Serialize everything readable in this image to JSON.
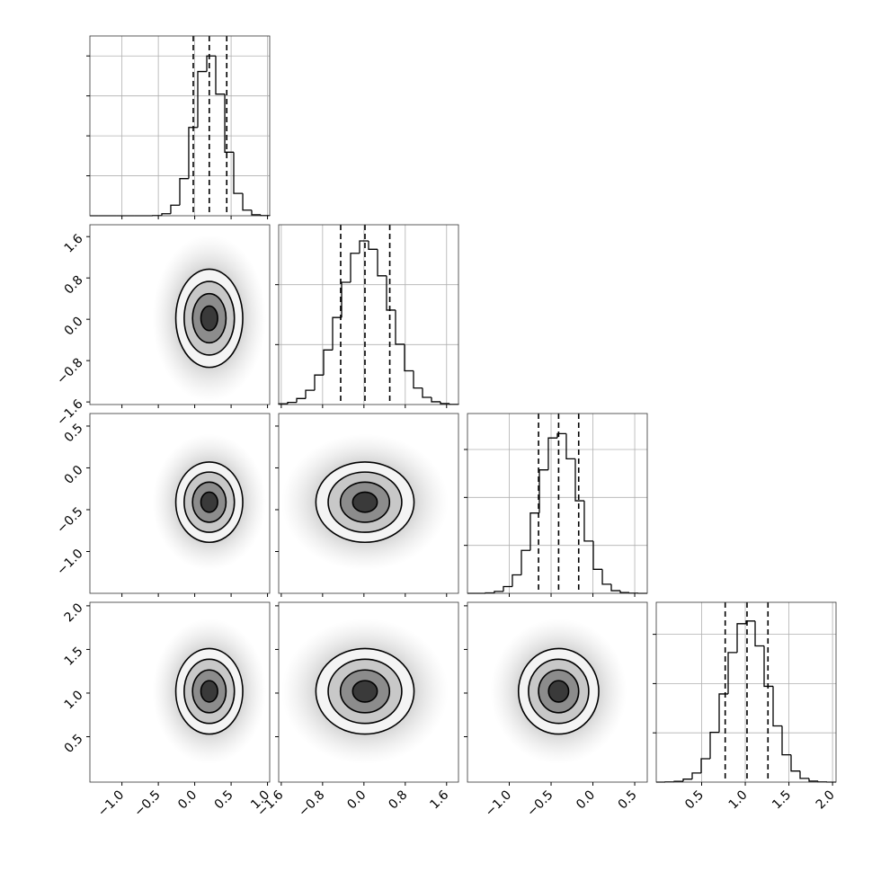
{
  "chart_data": {
    "type": "corner",
    "grid": true,
    "line_color": "#000000",
    "contour_levels": [
      0.5,
      1,
      1.5,
      2
    ],
    "contour_fills": [
      "#3a3a3a",
      "#8c8c8c",
      "#c8c8c8",
      "#f4f4f4"
    ],
    "params": [
      {
        "lim": [
          -1.44,
          1.03
        ],
        "ticks": [
          {
            "value": -1,
            "label": "−1.0"
          },
          {
            "value": -0.5,
            "label": "−0.5"
          },
          {
            "value": 0,
            "label": "0.0"
          },
          0.5,
          {
            "value": 1,
            "label": "1.0"
          }
        ],
        "bins": [
          -1.44,
          -1.317,
          -1.193,
          -1.07,
          -0.946,
          -0.823,
          -0.699,
          -0.576,
          -0.452,
          -0.329,
          -0.205,
          -0.082,
          0.042,
          0.166,
          0.289,
          0.413,
          0.536,
          0.66,
          0.783,
          0.907,
          1.03
        ],
        "counts": [
          0,
          0,
          0,
          0,
          0,
          0,
          0,
          1,
          10,
          53,
          186,
          442,
          722,
          800,
          609,
          318,
          112,
          28,
          5,
          1
        ],
        "count_lim": [
          0,
          900
        ],
        "count_ticks": [
          200,
          400,
          600,
          800
        ],
        "quantiles": [
          -0.02,
          0.2,
          0.44
        ]
      },
      {
        "lim": [
          -1.65,
          1.83
        ],
        "ticks": [
          {
            "value": -1.6,
            "label": "−1.6"
          },
          {
            "value": -0.8,
            "label": "−0.8"
          },
          {
            "value": 0,
            "label": "0.0"
          },
          0.8,
          1.6
        ],
        "bins": [
          -1.65,
          -1.476,
          -1.302,
          -1.128,
          -0.954,
          -0.78,
          -0.606,
          -0.432,
          -0.258,
          -0.084,
          0.09,
          0.264,
          0.438,
          0.612,
          0.786,
          0.96,
          1.134,
          1.308,
          1.482,
          1.656,
          1.83
        ],
        "counts": [
          6,
          18,
          50,
          119,
          246,
          455,
          726,
          1020,
          1262,
          1365,
          1295,
          1074,
          788,
          503,
          281,
          138,
          60,
          23,
          8,
          2
        ],
        "count_lim": [
          0,
          1500
        ],
        "count_ticks": [
          500,
          1000
        ],
        "quantiles": [
          -0.45,
          0.02,
          0.5
        ]
      },
      {
        "lim": [
          -1.5,
          0.65
        ],
        "ticks": [
          {
            "value": -1,
            "label": "−1.0"
          },
          {
            "value": -0.5,
            "label": "−0.5"
          },
          {
            "value": 0,
            "label": "0.0"
          },
          0.5
        ],
        "bins": [
          -1.5,
          -1.393,
          -1.285,
          -1.178,
          -1.07,
          -0.963,
          -0.855,
          -0.748,
          -0.64,
          -0.533,
          -0.425,
          -0.318,
          -0.21,
          -0.103,
          0.005,
          0.113,
          0.22,
          0.328,
          0.435,
          0.543,
          0.65
        ],
        "counts": [
          0,
          0,
          2,
          8,
          28,
          77,
          179,
          335,
          515,
          648,
          666,
          561,
          386,
          218,
          100,
          38,
          11,
          3,
          1,
          0
        ],
        "count_lim": [
          0,
          750
        ],
        "count_ticks": [
          200,
          400,
          600
        ],
        "quantiles": [
          -0.65,
          -0.41,
          -0.17
        ]
      },
      {
        "lim": [
          -0.02,
          2.04
        ],
        "ticks": [
          0.5,
          {
            "value": 1,
            "label": "1.0"
          },
          1.5,
          {
            "value": 2,
            "label": "2.0"
          }
        ],
        "bins": [
          -0.02,
          0.083,
          0.186,
          0.289,
          0.392,
          0.495,
          0.598,
          0.701,
          0.804,
          0.907,
          1.01,
          1.113,
          1.216,
          1.319,
          1.422,
          1.525,
          1.628,
          1.731,
          1.834,
          1.937,
          2.04
        ],
        "counts": [
          0,
          1,
          3,
          12,
          37,
          95,
          202,
          358,
          526,
          643,
          654,
          553,
          389,
          228,
          111,
          45,
          15,
          4,
          1,
          0
        ],
        "count_lim": [
          0,
          730
        ],
        "count_ticks": [
          200,
          400,
          600
        ],
        "quantiles": [
          0.77,
          1.02,
          1.26
        ]
      }
    ]
  }
}
